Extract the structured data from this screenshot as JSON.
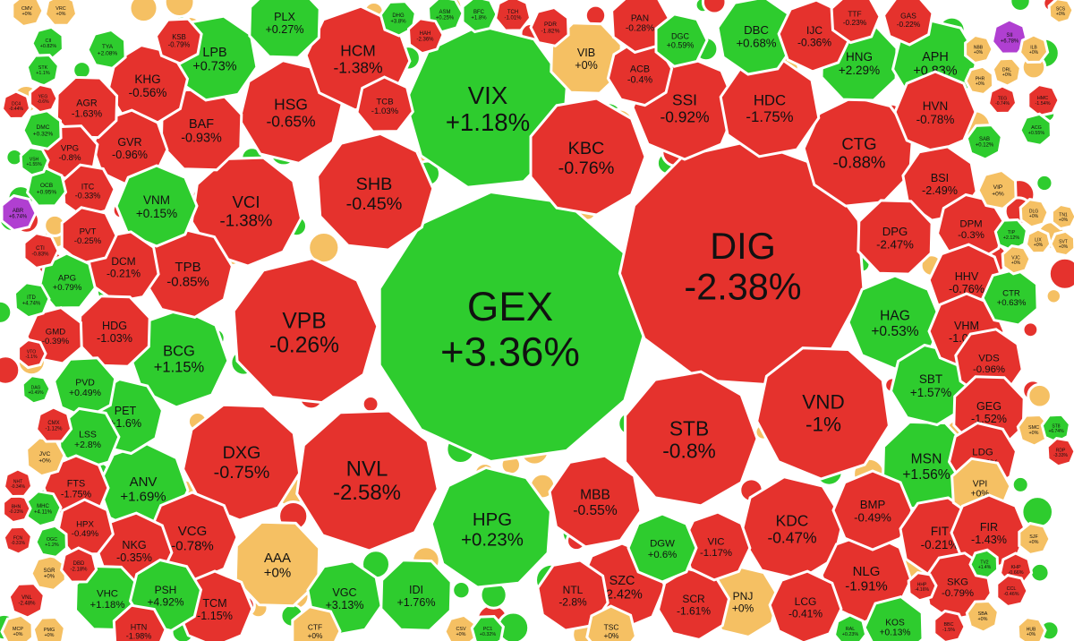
{
  "chart_data": {
    "type": "voronoi-bubble-heatmap",
    "colors": {
      "up": "#2ecc2e",
      "down": "#e5322d",
      "flat": "#f5c063",
      "ceiling": "#b03fd1",
      "border": "#ffffff",
      "text": "#111111"
    },
    "stocks": [
      {
        "ticker": "GEX",
        "change": "+3.36%",
        "value": 3.36,
        "status": "up"
      },
      {
        "ticker": "DIG",
        "change": "-2.38%",
        "value": -2.38,
        "status": "down"
      },
      {
        "ticker": "VIX",
        "change": "+1.18%",
        "value": 1.18,
        "status": "up"
      },
      {
        "ticker": "VPB",
        "change": "-0.26%",
        "value": -0.26,
        "status": "down"
      },
      {
        "ticker": "NVL",
        "change": "-2.58%",
        "value": -2.58,
        "status": "down"
      },
      {
        "ticker": "STB",
        "change": "-0.8%",
        "value": -0.8,
        "status": "down"
      },
      {
        "ticker": "VND",
        "change": "-1%",
        "value": -1.0,
        "status": "down"
      },
      {
        "ticker": "HPG",
        "change": "+0.23%",
        "value": 0.23,
        "status": "up"
      },
      {
        "ticker": "SHB",
        "change": "-0.45%",
        "value": -0.45,
        "status": "down"
      },
      {
        "ticker": "VCI",
        "change": "-1.38%",
        "value": -1.38,
        "status": "down"
      },
      {
        "ticker": "KBC",
        "change": "-0.76%",
        "value": -0.76,
        "status": "down"
      },
      {
        "ticker": "DXG",
        "change": "-0.75%",
        "value": -0.75,
        "status": "down"
      },
      {
        "ticker": "CTG",
        "change": "-0.88%",
        "value": -0.88,
        "status": "down"
      },
      {
        "ticker": "HSG",
        "change": "-0.65%",
        "value": -0.65,
        "status": "down"
      },
      {
        "ticker": "HCM",
        "change": "-1.38%",
        "value": -1.38,
        "status": "down"
      },
      {
        "ticker": "SSI",
        "change": "-0.92%",
        "value": -0.92,
        "status": "down"
      },
      {
        "ticker": "HDC",
        "change": "-1.75%",
        "value": -1.75,
        "status": "down"
      },
      {
        "ticker": "AAA",
        "change": "+0%",
        "value": 0,
        "status": "flat"
      },
      {
        "ticker": "KDC",
        "change": "-0.47%",
        "value": -0.47,
        "status": "down"
      },
      {
        "ticker": "BCG",
        "change": "+1.15%",
        "value": 1.15,
        "status": "up"
      },
      {
        "ticker": "HAG",
        "change": "+0.53%",
        "value": 0.53,
        "status": "up"
      },
      {
        "ticker": "MBB",
        "change": "-0.55%",
        "value": -0.55,
        "status": "down"
      },
      {
        "ticker": "BAF",
        "change": "-0.93%",
        "value": -0.93,
        "status": "down"
      },
      {
        "ticker": "TPB",
        "change": "-0.85%",
        "value": -0.85,
        "status": "down"
      },
      {
        "ticker": "ANV",
        "change": "+1.69%",
        "value": 1.69,
        "status": "up"
      },
      {
        "ticker": "VCG",
        "change": "-0.78%",
        "value": -0.78,
        "status": "down"
      },
      {
        "ticker": "DBC",
        "change": "+0.68%",
        "value": 0.68,
        "status": "up"
      },
      {
        "ticker": "MSN",
        "change": "+1.56%",
        "value": 1.56,
        "status": "up"
      },
      {
        "ticker": "SBT",
        "change": "+1.57%",
        "value": 1.57,
        "status": "up"
      },
      {
        "ticker": "NLG",
        "change": "-1.91%",
        "value": -1.91,
        "status": "down"
      },
      {
        "ticker": "SZC",
        "change": "-2.42%",
        "value": -2.42,
        "status": "down"
      },
      {
        "ticker": "LPB",
        "change": "+0.73%",
        "value": 0.73,
        "status": "up"
      },
      {
        "ticker": "PLX",
        "change": "+0.27%",
        "value": 0.27,
        "status": "up"
      },
      {
        "ticker": "KHG",
        "change": "-0.56%",
        "value": -0.56,
        "status": "down"
      },
      {
        "ticker": "GVR",
        "change": "-0.96%",
        "value": -0.96,
        "status": "down"
      },
      {
        "ticker": "VNM",
        "change": "+0.15%",
        "value": 0.15,
        "status": "up"
      },
      {
        "ticker": "DCM",
        "change": "-0.21%",
        "value": -0.21,
        "status": "down"
      },
      {
        "ticker": "HDG",
        "change": "-1.03%",
        "value": -1.03,
        "status": "down"
      },
      {
        "ticker": "PET",
        "change": "+1.6%",
        "value": 1.6,
        "status": "up"
      },
      {
        "ticker": "NKG",
        "change": "-0.35%",
        "value": -0.35,
        "status": "down"
      },
      {
        "ticker": "TCM",
        "change": "-1.15%",
        "value": -1.15,
        "status": "down"
      },
      {
        "ticker": "VGC",
        "change": "+3.13%",
        "value": 3.13,
        "status": "up"
      },
      {
        "ticker": "IDI",
        "change": "+1.76%",
        "value": 1.76,
        "status": "up"
      },
      {
        "ticker": "PNJ",
        "change": "+0%",
        "value": 0,
        "status": "flat"
      },
      {
        "ticker": "LCG",
        "change": "-0.41%",
        "value": -0.41,
        "status": "down"
      },
      {
        "ticker": "BMP",
        "change": "-0.49%",
        "value": -0.49,
        "status": "down"
      },
      {
        "ticker": "FIT",
        "change": "-0.21%",
        "value": -0.21,
        "status": "down"
      },
      {
        "ticker": "HNG",
        "change": "+2.29%",
        "value": 2.29,
        "status": "up"
      },
      {
        "ticker": "APH",
        "change": "+0.83%",
        "value": 0.83,
        "status": "up"
      },
      {
        "ticker": "IJC",
        "change": "-0.36%",
        "value": -0.36,
        "status": "down"
      },
      {
        "ticker": "HVN",
        "change": "-0.78%",
        "value": -0.78,
        "status": "down"
      },
      {
        "ticker": "BSI",
        "change": "-2.49%",
        "value": -2.49,
        "status": "down"
      },
      {
        "ticker": "DPG",
        "change": "-2.47%",
        "value": -2.47,
        "status": "down"
      },
      {
        "ticker": "DPM",
        "change": "-0.3%",
        "value": -0.3,
        "status": "down"
      },
      {
        "ticker": "HHV",
        "change": "-0.76%",
        "value": -0.76,
        "status": "down"
      },
      {
        "ticker": "VHM",
        "change": "-1.01%",
        "value": -1.01,
        "status": "down"
      },
      {
        "ticker": "VDS",
        "change": "-0.96%",
        "value": -0.96,
        "status": "down"
      },
      {
        "ticker": "GEG",
        "change": "-1.52%",
        "value": -1.52,
        "status": "down"
      },
      {
        "ticker": "LDG",
        "change": "-0.25%",
        "value": -0.25,
        "status": "down"
      },
      {
        "ticker": "VPI",
        "change": "+0%",
        "value": 0,
        "status": "flat"
      },
      {
        "ticker": "FIR",
        "change": "-1.43%",
        "value": -1.43,
        "status": "down"
      },
      {
        "ticker": "SKG",
        "change": "-0.79%",
        "value": -0.79,
        "status": "down"
      },
      {
        "ticker": "KOS",
        "change": "+0.13%",
        "value": 0.13,
        "status": "up"
      },
      {
        "ticker": "SCR",
        "change": "-1.61%",
        "value": -1.61,
        "status": "down"
      },
      {
        "ticker": "VIC",
        "change": "-1.17%",
        "value": -1.17,
        "status": "down"
      },
      {
        "ticker": "DGW",
        "change": "+0.6%",
        "value": 0.6,
        "status": "up"
      },
      {
        "ticker": "NTL",
        "change": "-2.8%",
        "value": -2.8,
        "status": "down"
      },
      {
        "ticker": "VIB",
        "change": "+0%",
        "value": 0,
        "status": "flat"
      },
      {
        "ticker": "ACB",
        "change": "-0.4%",
        "value": -0.4,
        "status": "down"
      },
      {
        "ticker": "PAN",
        "change": "-0.28%",
        "value": -0.28,
        "status": "down"
      },
      {
        "ticker": "DGC",
        "change": "+0.59%",
        "value": 0.59,
        "status": "up"
      },
      {
        "ticker": "TCB",
        "change": "-1.03%",
        "value": -1.03,
        "status": "down"
      },
      {
        "ticker": "AGR",
        "change": "-1.63%",
        "value": -1.63,
        "status": "down"
      },
      {
        "ticker": "VPG",
        "change": "-0.8%",
        "value": -0.8,
        "status": "down"
      },
      {
        "ticker": "ITC",
        "change": "-0.33%",
        "value": -0.33,
        "status": "down"
      },
      {
        "ticker": "PVT",
        "change": "-0.25%",
        "value": -0.25,
        "status": "down"
      },
      {
        "ticker": "APG",
        "change": "+0.79%",
        "value": 0.79,
        "status": "up"
      },
      {
        "ticker": "GMD",
        "change": "-0.39%",
        "value": -0.39,
        "status": "down"
      },
      {
        "ticker": "PVD",
        "change": "+0.49%",
        "value": 0.49,
        "status": "up"
      },
      {
        "ticker": "LSS",
        "change": "+2.8%",
        "value": 2.8,
        "status": "up"
      },
      {
        "ticker": "FTS",
        "change": "-1.75%",
        "value": -1.75,
        "status": "down"
      },
      {
        "ticker": "HPX",
        "change": "-0.49%",
        "value": -0.49,
        "status": "down"
      },
      {
        "ticker": "VHC",
        "change": "+1.18%",
        "value": 1.18,
        "status": "up"
      },
      {
        "ticker": "PSH",
        "change": "+4.92%",
        "value": 4.92,
        "status": "up"
      },
      {
        "ticker": "HTN",
        "change": "-1.98%",
        "value": -1.98,
        "status": "down"
      },
      {
        "ticker": "CTF",
        "change": "+0%",
        "value": 0,
        "status": "flat"
      },
      {
        "ticker": "TSC",
        "change": "+0%",
        "value": 0,
        "status": "flat"
      },
      {
        "ticker": "CTR",
        "change": "+0.63%",
        "value": 0.63,
        "status": "up"
      },
      {
        "ticker": "GAS",
        "change": "-0.22%",
        "value": -0.22,
        "status": "down"
      },
      {
        "ticker": "TTF",
        "change": "-0.23%",
        "value": -0.23,
        "status": "down"
      },
      {
        "ticker": "ABR",
        "change": "+6.74%",
        "value": 6.74,
        "status": "ceiling"
      },
      {
        "ticker": "SII",
        "change": "+6.78%",
        "value": 6.78,
        "status": "ceiling"
      },
      {
        "ticker": "VIP",
        "change": "+0%",
        "value": 0,
        "status": "flat"
      },
      {
        "ticker": "SMC",
        "change": "+0%",
        "value": 0,
        "status": "flat"
      },
      {
        "ticker": "JVC",
        "change": "+0%",
        "value": 0,
        "status": "flat"
      },
      {
        "ticker": "SJF",
        "change": "+0%",
        "value": 0,
        "status": "flat"
      },
      {
        "ticker": "OCB",
        "change": "+0.95%",
        "value": 0.95,
        "status": "up"
      },
      {
        "ticker": "DMC",
        "change": "+0.32%",
        "value": 0.32,
        "status": "up"
      },
      {
        "ticker": "SAB",
        "change": "+0.12%",
        "value": 0.12,
        "status": "up"
      },
      {
        "ticker": "ITD",
        "change": "+4.74%",
        "value": 4.74,
        "status": "up"
      },
      {
        "ticker": "CTI",
        "change": "-0.83%",
        "value": -0.83,
        "status": "down"
      },
      {
        "ticker": "CMX",
        "change": "-1.12%",
        "value": -1.12,
        "status": "down"
      },
      {
        "ticker": "SGR",
        "change": "+0%",
        "value": 0,
        "status": "flat"
      },
      {
        "ticker": "VNL",
        "change": "-2.48%",
        "value": -2.48,
        "status": "down"
      },
      {
        "ticker": "MHC",
        "change": "+4.11%",
        "value": 4.11,
        "status": "up"
      },
      {
        "ticker": "BHN",
        "change": "-0.23%",
        "value": -0.23,
        "status": "down"
      },
      {
        "ticker": "DBD",
        "change": "-2.18%",
        "value": -2.18,
        "status": "down"
      },
      {
        "ticker": "MCP",
        "change": "+0%",
        "value": 0,
        "status": "flat"
      },
      {
        "ticker": "PMG",
        "change": "+0%",
        "value": 0,
        "status": "flat"
      },
      {
        "ticker": "ASM",
        "change": "+0.25%",
        "value": 0.25,
        "status": "up"
      },
      {
        "ticker": "BFC",
        "change": "+1.8%",
        "value": 1.8,
        "status": "up"
      },
      {
        "ticker": "TCH",
        "change": "-1.01%",
        "value": -1.01,
        "status": "down"
      },
      {
        "ticker": "PDR",
        "change": "-1.82%",
        "value": -1.82,
        "status": "down"
      },
      {
        "ticker": "DHG",
        "change": "+3.8%",
        "value": 3.8,
        "status": "up"
      },
      {
        "ticker": "HAH",
        "change": "-2.36%",
        "value": -2.36,
        "status": "down"
      },
      {
        "ticker": "NBB",
        "change": "+0%",
        "value": 0,
        "status": "flat"
      },
      {
        "ticker": "ILB",
        "change": "+0%",
        "value": 0,
        "status": "flat"
      },
      {
        "ticker": "PHR",
        "change": "+0%",
        "value": 0,
        "status": "flat"
      },
      {
        "ticker": "DRL",
        "change": "+0%",
        "value": 0,
        "status": "flat"
      },
      {
        "ticker": "DLG",
        "change": "+0%",
        "value": 0,
        "status": "flat"
      },
      {
        "ticker": "TN1",
        "change": "+0%",
        "value": 0,
        "status": "flat"
      },
      {
        "ticker": "LIX",
        "change": "+0%",
        "value": 0,
        "status": "flat"
      },
      {
        "ticker": "SVT",
        "change": "+0%",
        "value": 0,
        "status": "flat"
      },
      {
        "ticker": "TIP",
        "change": "+2.12%",
        "value": 2.12,
        "status": "up"
      },
      {
        "ticker": "VJC",
        "change": "+0%",
        "value": 0,
        "status": "flat"
      },
      {
        "ticker": "BBC",
        "change": "-1.5%",
        "value": -1.5,
        "status": "down"
      },
      {
        "ticker": "KHP",
        "change": "-0.66%",
        "value": -0.66,
        "status": "down"
      },
      {
        "ticker": "TV2",
        "change": "+1.4%",
        "value": 1.4,
        "status": "up"
      },
      {
        "ticker": "SBA",
        "change": "+0%",
        "value": 0,
        "status": "flat"
      },
      {
        "ticker": "HUB",
        "change": "+0%",
        "value": 0,
        "status": "flat"
      },
      {
        "ticker": "CCL",
        "change": "-0.46%",
        "value": -0.46,
        "status": "down"
      },
      {
        "ticker": "RAL",
        "change": "+0.23%",
        "value": 0.23,
        "status": "up"
      },
      {
        "ticker": "CSV",
        "change": "+0%",
        "value": 0,
        "status": "flat"
      },
      {
        "ticker": "PC1",
        "change": "+0.32%",
        "value": 0.32,
        "status": "up"
      },
      {
        "ticker": "HHP",
        "change": "-4.16%",
        "value": -4.16,
        "status": "down"
      },
      {
        "ticker": "HMC",
        "change": "-1.54%",
        "value": -1.54,
        "status": "down"
      },
      {
        "ticker": "TEG",
        "change": "-0.74%",
        "value": -0.74,
        "status": "down"
      },
      {
        "ticker": "ACG",
        "change": "+0.55%",
        "value": 0.55,
        "status": "up"
      },
      {
        "ticker": "ST8",
        "change": "+6.74%",
        "value": 6.74,
        "status": "up"
      },
      {
        "ticker": "RDP",
        "change": "-3.33%",
        "value": -3.33,
        "status": "down"
      },
      {
        "ticker": "CMV",
        "change": "+0%",
        "value": 0,
        "status": "flat"
      },
      {
        "ticker": "VRC",
        "change": "+0%",
        "value": 0,
        "status": "flat"
      },
      {
        "ticker": "CII",
        "change": "+0.82%",
        "value": 0.82,
        "status": "up"
      },
      {
        "ticker": "STK",
        "change": "+1.1%",
        "value": 1.1,
        "status": "up"
      },
      {
        "ticker": "VSH",
        "change": "+1.55%",
        "value": 1.55,
        "status": "up"
      },
      {
        "ticker": "YEG",
        "change": "-0.6%",
        "value": -0.6,
        "status": "down"
      },
      {
        "ticker": "DC4",
        "change": "-0.44%",
        "value": -0.44,
        "status": "down"
      },
      {
        "ticker": "OGC",
        "change": "+1.2%",
        "value": 1.2,
        "status": "up"
      },
      {
        "ticker": "FCN",
        "change": "-0.31%",
        "value": -0.31,
        "status": "down"
      },
      {
        "ticker": "DAG",
        "change": "+0.49%",
        "value": 0.49,
        "status": "up"
      },
      {
        "ticker": "VTO",
        "change": "-1.1%",
        "value": -1.1,
        "status": "down"
      },
      {
        "ticker": "NHT",
        "change": "-0.34%",
        "value": -0.34,
        "status": "down"
      },
      {
        "ticker": "TYA",
        "change": "+2.08%",
        "value": 2.08,
        "status": "up"
      },
      {
        "ticker": "KSB",
        "change": "-0.79%",
        "value": -0.79,
        "status": "down"
      },
      {
        "ticker": "SCS",
        "change": "+0%",
        "value": 0,
        "status": "flat"
      }
    ]
  }
}
